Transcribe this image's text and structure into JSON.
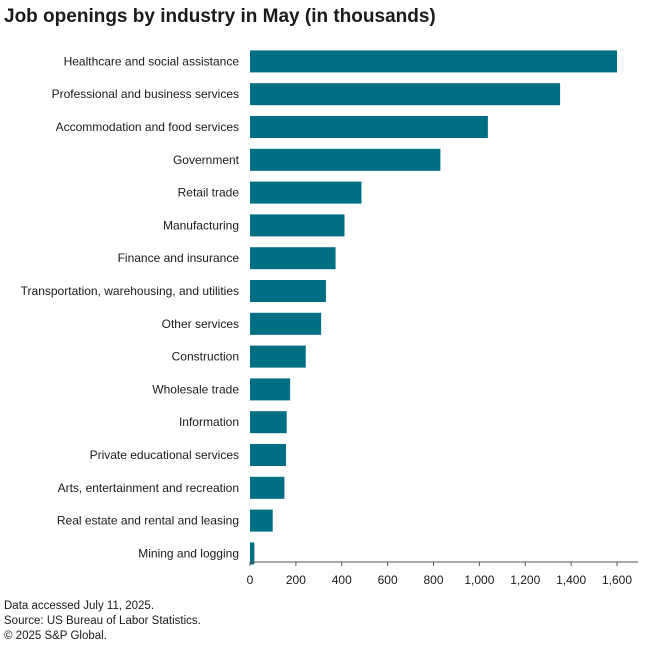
{
  "chart_data": {
    "type": "bar",
    "orientation": "horizontal",
    "title": "Job openings by industry in May (in thousands)",
    "xlabel": "",
    "ylabel": "",
    "xlim": [
      0,
      1600
    ],
    "x_ticks": [
      0,
      200,
      400,
      600,
      800,
      1000,
      1200,
      1400,
      1600
    ],
    "x_tick_labels": [
      "0",
      "200",
      "400",
      "600",
      "800",
      "1,000",
      "1,200",
      "1,400",
      "1,600"
    ],
    "grid": false,
    "color": "#006e83",
    "categories": [
      "Healthcare and social assistance",
      "Professional and business services",
      "Accommodation and food services",
      "Government",
      "Retail trade",
      "Manufacturing",
      "Finance and insurance",
      "Transportation, warehousing, and utilities",
      "Other services",
      "Construction",
      "Wholesale trade",
      "Information",
      "Private educational services",
      "Arts, entertainment and recreation",
      "Real estate and rental and leasing",
      "Mining and logging"
    ],
    "values": [
      1600,
      1352,
      1037,
      830,
      486,
      412,
      373,
      331,
      310,
      243,
      175,
      160,
      157,
      150,
      99,
      19
    ]
  },
  "footer": {
    "line1": "Data accessed July 11, 2025.",
    "line2": "Source: US Bureau of Labor Statistics.",
    "line3": "© 2025 S&P Global."
  }
}
